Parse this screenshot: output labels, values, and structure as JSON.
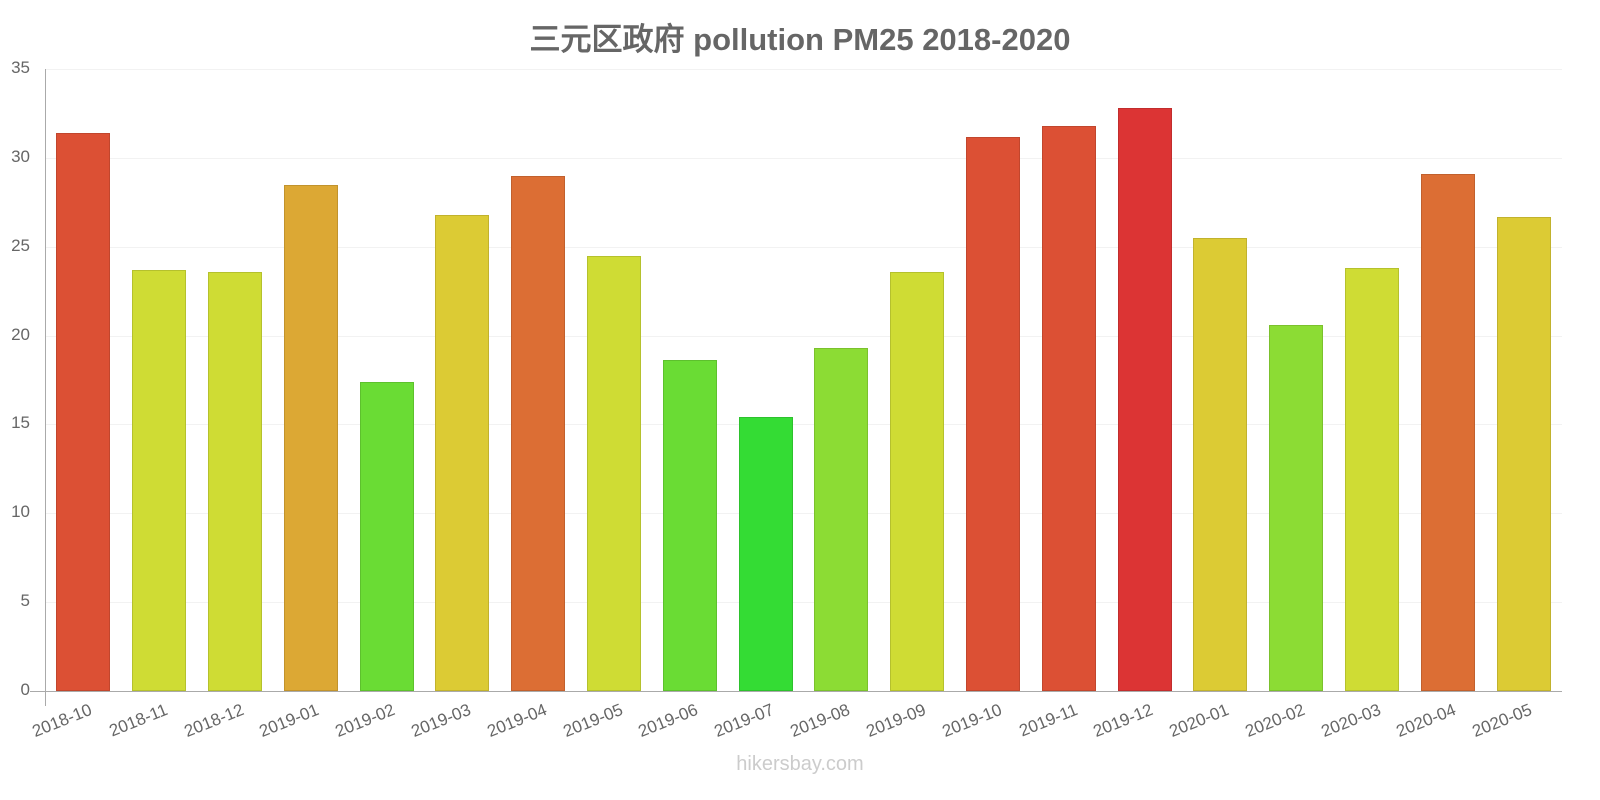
{
  "chart_data": {
    "type": "bar",
    "title": "三元区政府 pollution PM25 2018-2020",
    "xlabel": "",
    "ylabel": "",
    "ylim": [
      0,
      35
    ],
    "yticks": [
      0,
      5,
      10,
      15,
      20,
      25,
      30,
      35
    ],
    "grid": true,
    "legend": null,
    "categories": [
      "2018-10",
      "2018-11",
      "2018-12",
      "2019-01",
      "2019-02",
      "2019-03",
      "2019-04",
      "2019-05",
      "2019-06",
      "2019-07",
      "2019-08",
      "2019-09",
      "2019-10",
      "2019-11",
      "2019-12",
      "2020-01",
      "2020-02",
      "2020-03",
      "2020-04",
      "2020-05"
    ],
    "values": [
      31.4,
      23.7,
      23.6,
      28.5,
      17.4,
      26.8,
      29.0,
      24.5,
      18.6,
      15.4,
      19.3,
      23.6,
      31.2,
      31.8,
      32.8,
      25.5,
      20.6,
      23.8,
      29.1,
      26.7
    ],
    "colors": [
      "#dc5034",
      "#cfdc34",
      "#cfdc34",
      "#dca834",
      "#6adc34",
      "#dccb34",
      "#dc6e34",
      "#cfdc34",
      "#6adc34",
      "#34dc34",
      "#8cdc34",
      "#cfdc34",
      "#dc5034",
      "#dc5034",
      "#dc3434",
      "#dccb34",
      "#8cdc34",
      "#cfdc34",
      "#dc6e34",
      "#dccb34"
    ]
  },
  "header": {
    "title": "三元区政府 pollution PM25 2018-2020"
  },
  "footer": {
    "watermark": "hikersbay.com"
  }
}
